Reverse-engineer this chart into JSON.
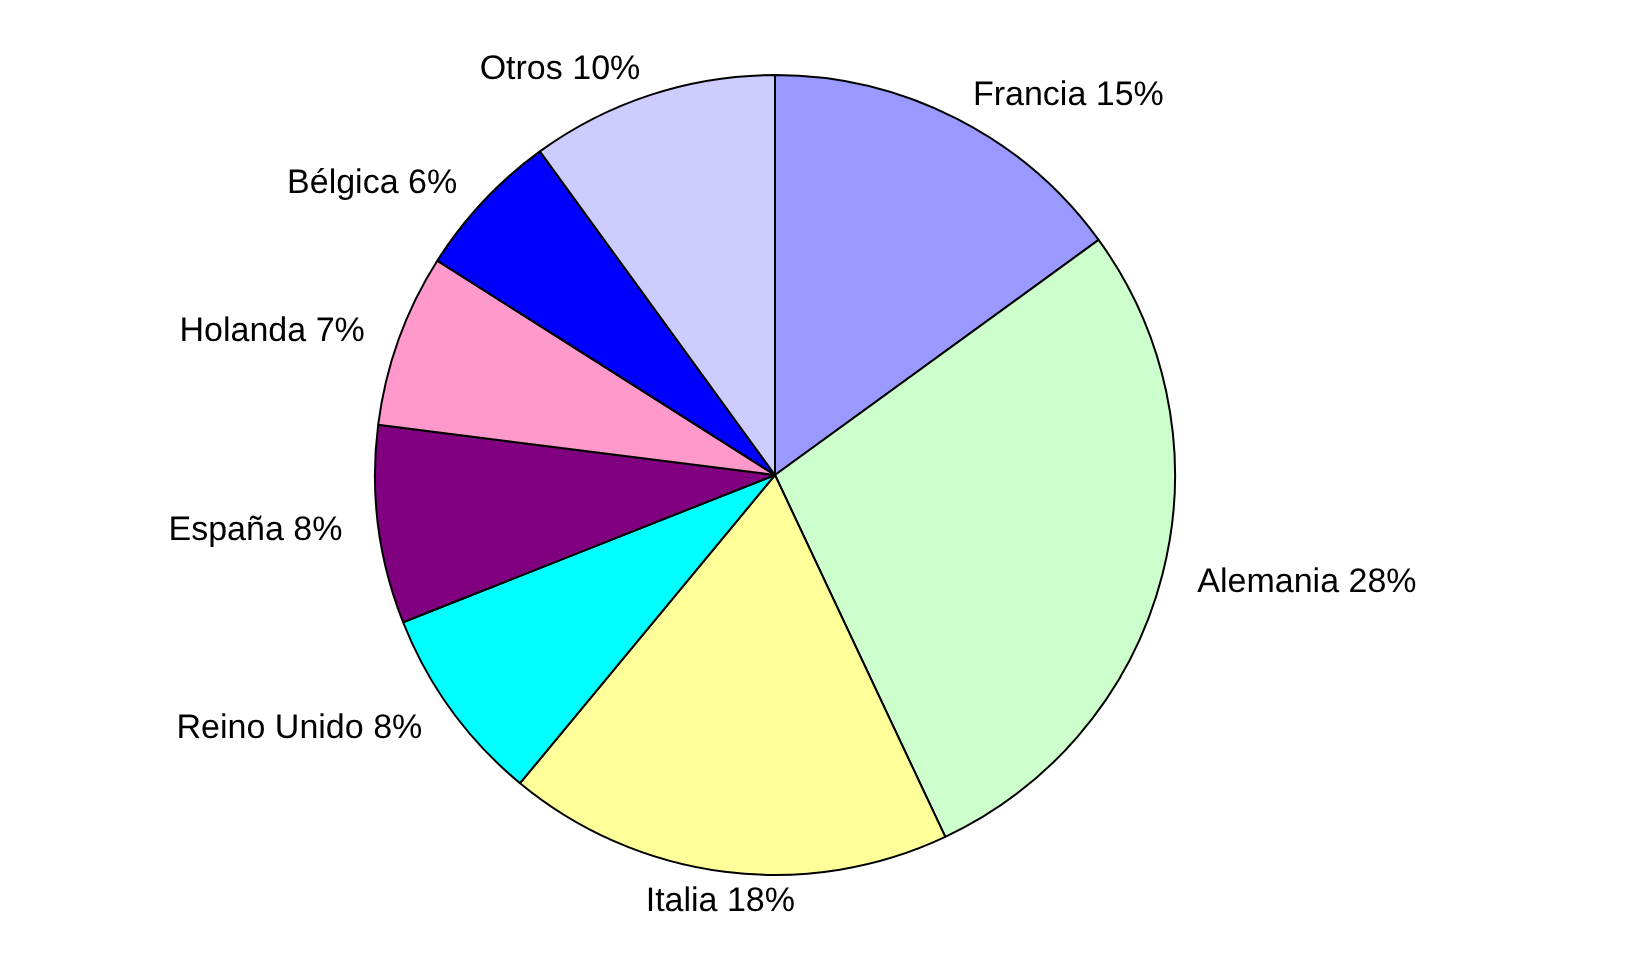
{
  "chart_data": {
    "type": "pie",
    "categories": [
      "Francia",
      "Alemania",
      "Italia",
      "Reino Unido",
      "España",
      "Holanda",
      "Bélgica",
      "Otros"
    ],
    "values": [
      15,
      28,
      18,
      8,
      8,
      7,
      6,
      10
    ],
    "value_labels": [
      "15%",
      "28%",
      "18%",
      "8%",
      "8%",
      "7%",
      "6%",
      "10%"
    ],
    "colors": [
      "#9999ff",
      "#ccffcc",
      "#ffff99",
      "#00ffff",
      "#800080",
      "#ff99cc",
      "#0000ff",
      "#ccccff"
    ],
    "legend": false
  }
}
